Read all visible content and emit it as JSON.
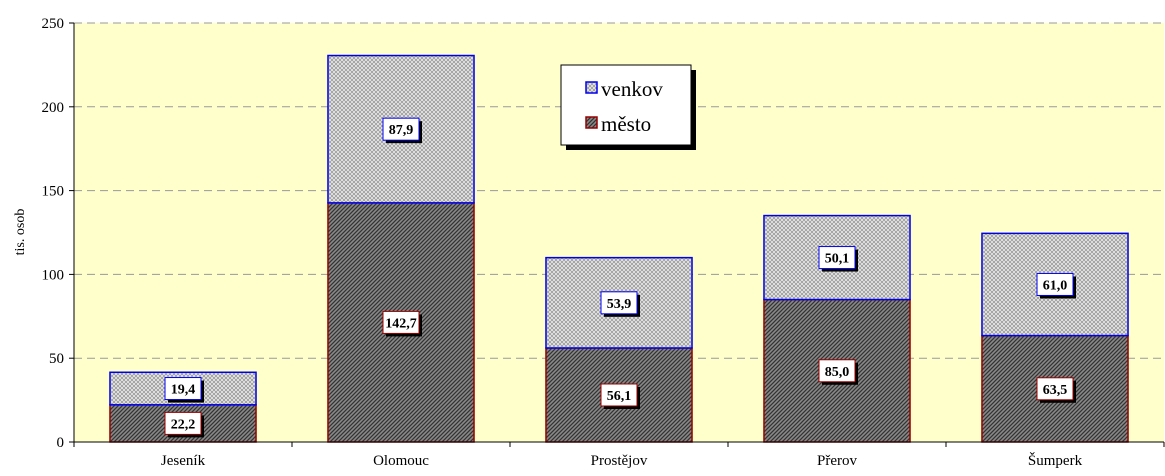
{
  "chart_data": {
    "type": "bar",
    "stacked": true,
    "title": "",
    "xlabel": "",
    "ylabel": "tis. osob",
    "ylim": [
      0,
      250
    ],
    "yticks": [
      0,
      50,
      100,
      150,
      200,
      250
    ],
    "grid": true,
    "legend_position": "top-center",
    "categories": [
      "Jeseník",
      "Olomouc",
      "Prostějov",
      "Přerov",
      "Šumperk"
    ],
    "series": [
      {
        "name": "město",
        "values": [
          22.2,
          142.7,
          56.1,
          85.0,
          63.5
        ],
        "labels": [
          "22,2",
          "142,7",
          "56,1",
          "85,0",
          "63,5"
        ],
        "fill": "#555555",
        "border": "#990000"
      },
      {
        "name": "venkov",
        "values": [
          19.4,
          87.9,
          53.9,
          50.1,
          61.0
        ],
        "labels": [
          "19,4",
          "87,9",
          "53,9",
          "50,1",
          "61,0"
        ],
        "fill": "#cccccc",
        "border": "#0000ee"
      }
    ],
    "colors": {
      "plot_background": "#ffffcc",
      "gridline": "#999999"
    }
  }
}
